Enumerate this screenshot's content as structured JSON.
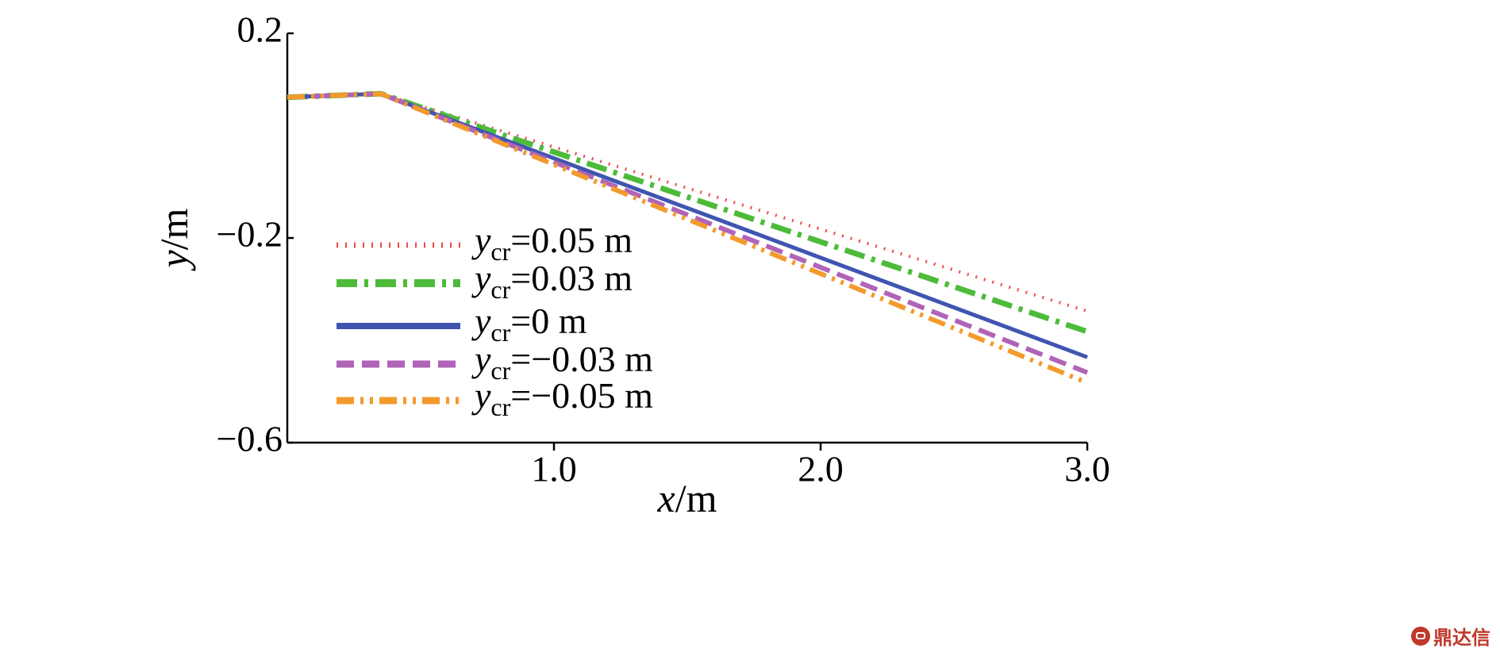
{
  "chart_data": {
    "type": "line",
    "xlabel": {
      "var": "x",
      "unit": "m"
    },
    "ylabel": {
      "var": "y",
      "unit": "m"
    },
    "xlim": [
      0,
      3.0
    ],
    "ylim": [
      -0.6,
      0.2
    ],
    "xticks": [
      1.0,
      2.0,
      3.0
    ],
    "xtick_labels": [
      "1.0",
      "2.0",
      "3.0"
    ],
    "yticks": [
      0.2,
      -0.2,
      -0.6
    ],
    "ytick_labels": [
      "0.2",
      "−0.2",
      "−0.6"
    ],
    "grid": false,
    "legend_position": "center-left",
    "series": [
      {
        "name": "y_cr=0.05 m",
        "sym": "y",
        "sub": "cr",
        "value_text": "=0.05 m",
        "color": "#ee4d4d",
        "style": "dotted",
        "x": [
          0,
          0.35,
          3.0
        ],
        "y": [
          0.075,
          0.082,
          -0.343
        ]
      },
      {
        "name": "y_cr=0.03 m",
        "sym": "y",
        "sub": "cr",
        "value_text": "=0.03 m",
        "color": "#4dbb3a",
        "style": "dashdot",
        "x": [
          0,
          0.35,
          3.0
        ],
        "y": [
          0.075,
          0.082,
          -0.383
        ]
      },
      {
        "name": "y_cr=0 m",
        "sym": "y",
        "sub": "cr",
        "value_text": "=0 m",
        "color": "#4055b0",
        "style": "solid",
        "x": [
          0,
          0.35,
          3.0
        ],
        "y": [
          0.075,
          0.082,
          -0.433
        ]
      },
      {
        "name": "y_cr=−0.03 m",
        "sym": "y",
        "sub": "cr",
        "value_text": "=−0.03 m",
        "color": "#b063b8",
        "style": "dashed",
        "x": [
          0,
          0.35,
          3.0
        ],
        "y": [
          0.075,
          0.082,
          -0.463
        ]
      },
      {
        "name": "y_cr=−0.05 m",
        "sym": "y",
        "sub": "cr",
        "value_text": "=−0.05 m",
        "color": "#f39a2c",
        "style": "dashdotdot",
        "x": [
          0,
          0.35,
          3.0
        ],
        "y": [
          0.075,
          0.082,
          -0.483
        ]
      }
    ]
  },
  "watermark": {
    "text": "鼎达信",
    "icon": "logo-icon"
  }
}
